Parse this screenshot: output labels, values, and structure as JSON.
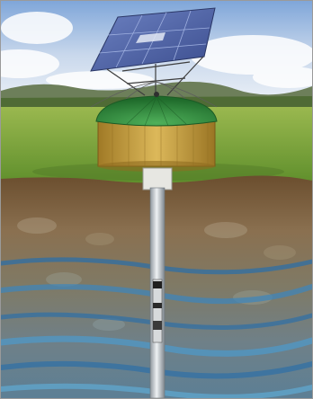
{
  "image": {
    "subject": "solar-powered-borehole-water-pump",
    "colors": {
      "sky_top": "#7fa6d9",
      "sky_bottom": "#e9eff6",
      "grass": "#7aa83c",
      "dome": "#2f8a3c",
      "housing": "#c9a23c",
      "pipe": "#bfc6cc",
      "panel": "#4e63a8",
      "water_layer": "#2d6fa6",
      "soil": "#7b5f3e"
    }
  }
}
